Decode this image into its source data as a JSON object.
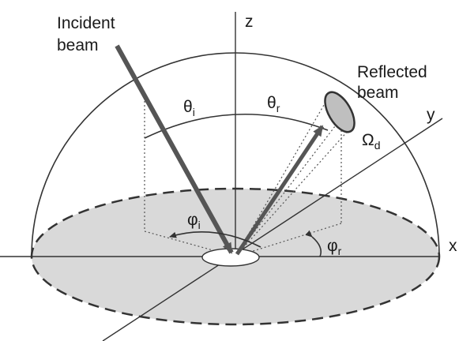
{
  "labels": {
    "incident_line1": "Incident",
    "incident_line2": "beam",
    "reflected_line1": "Reflected",
    "reflected_line2": "beam",
    "axis_z": "z",
    "axis_y": "y",
    "axis_x": "x",
    "theta_i": {
      "symbol": "θ",
      "sub": "i"
    },
    "theta_r": {
      "symbol": "θ",
      "sub": "r"
    },
    "phi_i": {
      "symbol": "φ",
      "sub": "i"
    },
    "phi_r": {
      "symbol": "φ",
      "sub": "r"
    },
    "omega_d": {
      "symbol": "Ω",
      "sub": "d"
    }
  },
  "colors": {
    "line": "#333333",
    "beam": "#555555",
    "disc_fill": "#d9d9d9",
    "dotted": "#555555",
    "solid_angle_fill": "#bfbfbf"
  }
}
